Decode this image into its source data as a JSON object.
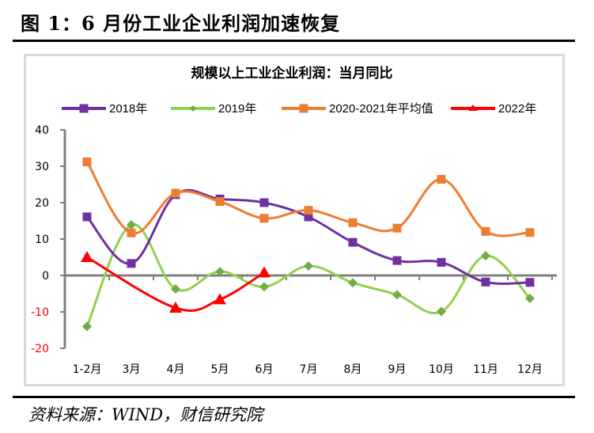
{
  "figure": {
    "title": "图 1：6 月份工业企业利润加速恢复",
    "source": "资料来源：WIND，财信研究院"
  },
  "colors": {
    "2018": "#7030a0",
    "2019": "#92d050",
    "2019_marker": "#70ad47",
    "avg": "#ed7d31",
    "2022": "#ff0000",
    "axis": "#808080",
    "negative_tick": "#ff0000",
    "frame": "#d9d9d9"
  },
  "chart_data": {
    "type": "line",
    "title": "规模以上工业企业利润：当月同比",
    "xlabel": "",
    "ylabel": "",
    "ylim": [
      -20,
      40
    ],
    "yticks": [
      40,
      30,
      20,
      10,
      0,
      -10,
      -20
    ],
    "ytick_labels": [
      "40",
      "30",
      "20",
      "10",
      "0",
      "-10",
      "-20"
    ],
    "grid": false,
    "legend_position": "top",
    "smooth": true,
    "categories": [
      "1-2月",
      "3月",
      "4月",
      "5月",
      "6月",
      "7月",
      "8月",
      "9月",
      "10月",
      "11月",
      "12月"
    ],
    "series": [
      {
        "name": "2018年",
        "key": "2018",
        "marker": "square",
        "values": [
          16.1,
          3.3,
          22.2,
          21.0,
          20.0,
          16.1,
          9.1,
          4.1,
          3.6,
          -1.8,
          -1.9
        ]
      },
      {
        "name": "2019年",
        "key": "2019",
        "marker": "diamond",
        "values": [
          -14.0,
          13.9,
          -3.7,
          1.1,
          -3.1,
          2.6,
          -2.0,
          -5.3,
          -9.9,
          5.4,
          -6.3
        ]
      },
      {
        "name": "2020-2021年平均值",
        "key": "avg",
        "marker": "square",
        "values": [
          31.2,
          11.7,
          22.6,
          20.3,
          15.7,
          17.9,
          14.5,
          13.0,
          26.4,
          12.1,
          11.8
        ]
      },
      {
        "name": "2022年",
        "key": "2022",
        "marker": "triangle",
        "values": [
          5.0,
          null,
          -8.9,
          -6.6,
          0.8,
          null,
          null,
          null,
          null,
          null,
          null
        ]
      }
    ]
  }
}
